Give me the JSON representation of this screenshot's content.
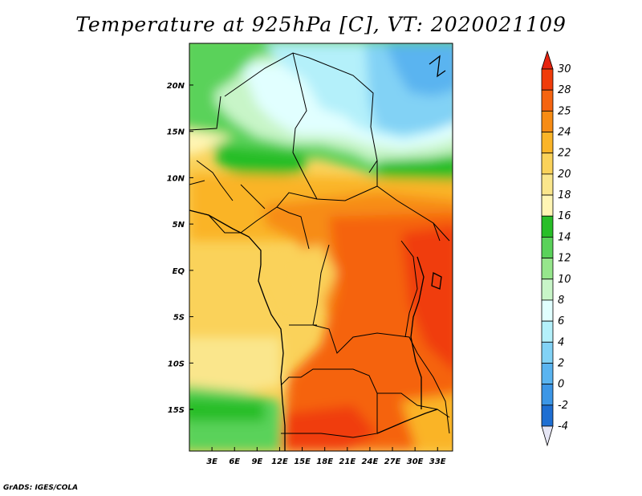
{
  "title": "Temperature at 925hPa [C], VT: 2020021109",
  "credit": "GrADS: IGES/COLA",
  "map": {
    "lon_range": [
      0,
      35
    ],
    "lat_range": [
      -19.5,
      24.5
    ],
    "x_ticks": [
      "3E",
      "6E",
      "9E",
      "12E",
      "15E",
      "18E",
      "21E",
      "24E",
      "27E",
      "30E",
      "33E"
    ],
    "x_tick_values": [
      3,
      6,
      9,
      12,
      15,
      18,
      21,
      24,
      27,
      30,
      33
    ],
    "y_ticks": [
      "20N",
      "15N",
      "10N",
      "5N",
      "EQ",
      "5S",
      "10S",
      "15S"
    ],
    "y_tick_values": [
      20,
      15,
      10,
      5,
      0,
      -5,
      -10,
      -15
    ]
  },
  "colorbar": {
    "labels": [
      "30",
      "28",
      "25",
      "24",
      "22",
      "20",
      "18",
      "16",
      "14",
      "12",
      "10",
      "8",
      "6",
      "4",
      "2",
      "0",
      "-2",
      "-4"
    ],
    "colors": [
      "#e6230f",
      "#f03c0a",
      "#f56410",
      "#f78c14",
      "#fab428",
      "#fad25a",
      "#fae68c",
      "#fff5b4",
      "#28be28",
      "#5ad25a",
      "#96e68c",
      "#c8f5c8",
      "#e1ffff",
      "#b4f0fa",
      "#82d2f5",
      "#5ab4f0",
      "#3c96e6",
      "#1e6ed2",
      "#0a46aa",
      "#002080",
      "#e6e6f5"
    ]
  }
}
